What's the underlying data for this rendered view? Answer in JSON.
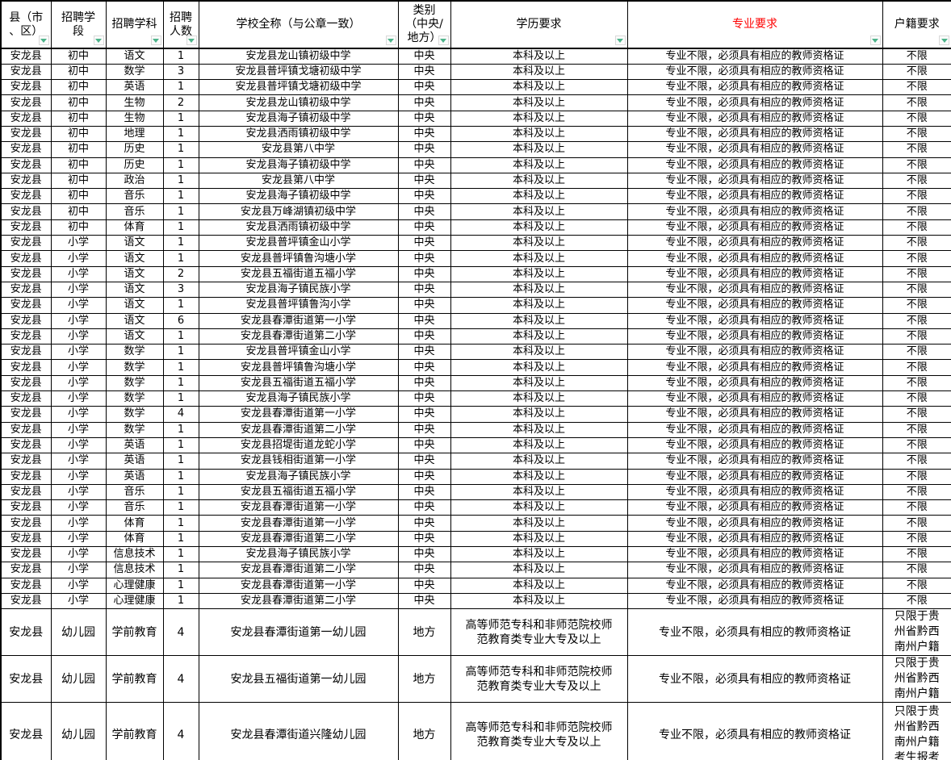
{
  "colors": {
    "accent_red": "#FE0000",
    "filter_arrow_green": "#4DB38A",
    "grid_black": "#000000",
    "background_white": "#FFFFFF"
  },
  "table": {
    "columns": [
      {
        "key": "county",
        "label": "县（市\n、区）"
      },
      {
        "key": "stage",
        "label": "招聘学\n段"
      },
      {
        "key": "subject",
        "label": "招聘学科"
      },
      {
        "key": "count",
        "label": "招聘\n人数"
      },
      {
        "key": "school",
        "label": "学校全称（与公章一致）"
      },
      {
        "key": "category",
        "label": "类别\n（中央/\n地方）"
      },
      {
        "key": "education",
        "label": "学历要求"
      },
      {
        "key": "major",
        "label": "专业要求",
        "accent": true
      },
      {
        "key": "residence",
        "label": "户籍要求"
      }
    ],
    "rows": [
      [
        "安龙县",
        "初中",
        "语文",
        "1",
        "安龙县龙山镇初级中学",
        "中央",
        "本科及以上",
        "专业不限，必须具有相应的教师资格证",
        "不限"
      ],
      [
        "安龙县",
        "初中",
        "数学",
        "3",
        "安龙县普坪镇戈塘初级中学",
        "中央",
        "本科及以上",
        "专业不限，必须具有相应的教师资格证",
        "不限"
      ],
      [
        "安龙县",
        "初中",
        "英语",
        "1",
        "安龙县普坪镇戈塘初级中学",
        "中央",
        "本科及以上",
        "专业不限，必须具有相应的教师资格证",
        "不限"
      ],
      [
        "安龙县",
        "初中",
        "生物",
        "2",
        "安龙县龙山镇初级中学",
        "中央",
        "本科及以上",
        "专业不限，必须具有相应的教师资格证",
        "不限"
      ],
      [
        "安龙县",
        "初中",
        "生物",
        "1",
        "安龙县海子镇初级中学",
        "中央",
        "本科及以上",
        "专业不限，必须具有相应的教师资格证",
        "不限"
      ],
      [
        "安龙县",
        "初中",
        "地理",
        "1",
        "安龙县洒雨镇初级中学",
        "中央",
        "本科及以上",
        "专业不限，必须具有相应的教师资格证",
        "不限"
      ],
      [
        "安龙县",
        "初中",
        "历史",
        "1",
        "安龙县第八中学",
        "中央",
        "本科及以上",
        "专业不限，必须具有相应的教师资格证",
        "不限"
      ],
      [
        "安龙县",
        "初中",
        "历史",
        "1",
        "安龙县海子镇初级中学",
        "中央",
        "本科及以上",
        "专业不限，必须具有相应的教师资格证",
        "不限"
      ],
      [
        "安龙县",
        "初中",
        "政治",
        "1",
        "安龙县第八中学",
        "中央",
        "本科及以上",
        "专业不限，必须具有相应的教师资格证",
        "不限"
      ],
      [
        "安龙县",
        "初中",
        "音乐",
        "1",
        "安龙县海子镇初级中学",
        "中央",
        "本科及以上",
        "专业不限，必须具有相应的教师资格证",
        "不限"
      ],
      [
        "安龙县",
        "初中",
        "音乐",
        "1",
        "安龙县万峰湖镇初级中学",
        "中央",
        "本科及以上",
        "专业不限，必须具有相应的教师资格证",
        "不限"
      ],
      [
        "安龙县",
        "初中",
        "体育",
        "1",
        "安龙县洒雨镇初级中学",
        "中央",
        "本科及以上",
        "专业不限，必须具有相应的教师资格证",
        "不限"
      ],
      [
        "安龙县",
        "小学",
        "语文",
        "1",
        "安龙县普坪镇金山小学",
        "中央",
        "本科及以上",
        "专业不限，必须具有相应的教师资格证",
        "不限"
      ],
      [
        "安龙县",
        "小学",
        "语文",
        "1",
        "安龙县普坪镇鲁沟塘小学",
        "中央",
        "本科及以上",
        "专业不限，必须具有相应的教师资格证",
        "不限"
      ],
      [
        "安龙县",
        "小学",
        "语文",
        "2",
        "安龙县五福街道五福小学",
        "中央",
        "本科及以上",
        "专业不限，必须具有相应的教师资格证",
        "不限"
      ],
      [
        "安龙县",
        "小学",
        "语文",
        "3",
        "安龙县海子镇民族小学",
        "中央",
        "本科及以上",
        "专业不限，必须具有相应的教师资格证",
        "不限"
      ],
      [
        "安龙县",
        "小学",
        "语文",
        "1",
        "安龙县普坪镇鲁沟小学",
        "中央",
        "本科及以上",
        "专业不限，必须具有相应的教师资格证",
        "不限"
      ],
      [
        "安龙县",
        "小学",
        "语文",
        "6",
        "安龙县春潭街道第一小学",
        "中央",
        "本科及以上",
        "专业不限，必须具有相应的教师资格证",
        "不限"
      ],
      [
        "安龙县",
        "小学",
        "语文",
        "1",
        "安龙县春潭街道第二小学",
        "中央",
        "本科及以上",
        "专业不限，必须具有相应的教师资格证",
        "不限"
      ],
      [
        "安龙县",
        "小学",
        "数学",
        "1",
        "安龙县普坪镇金山小学",
        "中央",
        "本科及以上",
        "专业不限，必须具有相应的教师资格证",
        "不限"
      ],
      [
        "安龙县",
        "小学",
        "数学",
        "1",
        "安龙县普坪镇鲁沟塘小学",
        "中央",
        "本科及以上",
        "专业不限，必须具有相应的教师资格证",
        "不限"
      ],
      [
        "安龙县",
        "小学",
        "数学",
        "1",
        "安龙县五福街道五福小学",
        "中央",
        "本科及以上",
        "专业不限，必须具有相应的教师资格证",
        "不限"
      ],
      [
        "安龙县",
        "小学",
        "数学",
        "1",
        "安龙县海子镇民族小学",
        "中央",
        "本科及以上",
        "专业不限，必须具有相应的教师资格证",
        "不限"
      ],
      [
        "安龙县",
        "小学",
        "数学",
        "4",
        "安龙县春潭街道第一小学",
        "中央",
        "本科及以上",
        "专业不限，必须具有相应的教师资格证",
        "不限"
      ],
      [
        "安龙县",
        "小学",
        "数学",
        "1",
        "安龙县春潭街道第二小学",
        "中央",
        "本科及以上",
        "专业不限，必须具有相应的教师资格证",
        "不限"
      ],
      [
        "安龙县",
        "小学",
        "英语",
        "1",
        "安龙县招堤街道龙蛇小学",
        "中央",
        "本科及以上",
        "专业不限，必须具有相应的教师资格证",
        "不限"
      ],
      [
        "安龙县",
        "小学",
        "英语",
        "1",
        "安龙县钱相街道第一小学",
        "中央",
        "本科及以上",
        "专业不限，必须具有相应的教师资格证",
        "不限"
      ],
      [
        "安龙县",
        "小学",
        "英语",
        "1",
        "安龙县海子镇民族小学",
        "中央",
        "本科及以上",
        "专业不限，必须具有相应的教师资格证",
        "不限"
      ],
      [
        "安龙县",
        "小学",
        "音乐",
        "1",
        "安龙县五福街道五福小学",
        "中央",
        "本科及以上",
        "专业不限，必须具有相应的教师资格证",
        "不限"
      ],
      [
        "安龙县",
        "小学",
        "音乐",
        "1",
        "安龙县春潭街道第一小学",
        "中央",
        "本科及以上",
        "专业不限，必须具有相应的教师资格证",
        "不限"
      ],
      [
        "安龙县",
        "小学",
        "体育",
        "1",
        "安龙县春潭街道第一小学",
        "中央",
        "本科及以上",
        "专业不限，必须具有相应的教师资格证",
        "不限"
      ],
      [
        "安龙县",
        "小学",
        "体育",
        "1",
        "安龙县春潭街道第二小学",
        "中央",
        "本科及以上",
        "专业不限，必须具有相应的教师资格证",
        "不限"
      ],
      [
        "安龙县",
        "小学",
        "信息技术",
        "1",
        "安龙县海子镇民族小学",
        "中央",
        "本科及以上",
        "专业不限，必须具有相应的教师资格证",
        "不限"
      ],
      [
        "安龙县",
        "小学",
        "信息技术",
        "1",
        "安龙县春潭街道第二小学",
        "中央",
        "本科及以上",
        "专业不限，必须具有相应的教师资格证",
        "不限"
      ],
      [
        "安龙县",
        "小学",
        "心理健康",
        "1",
        "安龙县春潭街道第一小学",
        "中央",
        "本科及以上",
        "专业不限，必须具有相应的教师资格证",
        "不限"
      ],
      [
        "安龙县",
        "小学",
        "心理健康",
        "1",
        "安龙县春潭街道第二小学",
        "中央",
        "本科及以上",
        "专业不限，必须具有相应的教师资格证",
        "不限"
      ],
      [
        "安龙县",
        "幼儿园",
        "学前教育",
        "4",
        "安龙县春潭街道第一幼儿园",
        "地方",
        "高等师范专科和非师范院校师范教育类专业大专及以上",
        "专业不限，必须具有相应的教师资格证",
        "只限于贵州省黔西南州户籍"
      ],
      [
        "安龙县",
        "幼儿园",
        "学前教育",
        "4",
        "安龙县五福街道第一幼儿园",
        "地方",
        "高等师范专科和非师范院校师范教育类专业大专及以上",
        "专业不限，必须具有相应的教师资格证",
        "只限于贵州省黔西南州户籍"
      ],
      [
        "安龙县",
        "幼儿园",
        "学前教育",
        "4",
        "安龙县春潭街道兴隆幼儿园",
        "地方",
        "高等师范专科和非师范院校师范教育类专业大专及以上",
        "专业不限，必须具有相应的教师资格证",
        "只限于贵州省黔西南州户籍考生报考"
      ]
    ]
  }
}
